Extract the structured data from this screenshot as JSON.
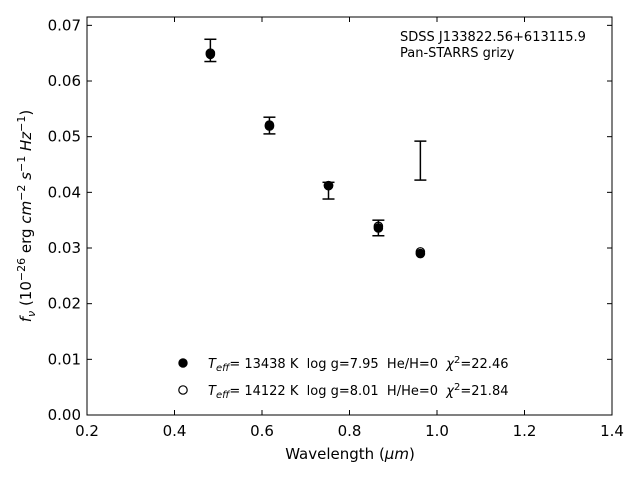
{
  "chart_data": {
    "type": "scatter",
    "xlabel_main": "Wavelength (",
    "xlabel_unit": "μm",
    "xlabel_close": ")",
    "ylabel": "f_ν (10^-26 erg cm^-2 s^-1 Hz^-1)",
    "xlim": [
      0.2,
      1.4
    ],
    "ylim": [
      0.0,
      0.0715
    ],
    "xticks": [
      "0.2",
      "0.4",
      "0.6",
      "0.8",
      "1.0",
      "1.2",
      "1.4"
    ],
    "yticks": [
      "0.00",
      "0.01",
      "0.02",
      "0.03",
      "0.04",
      "0.05",
      "0.06",
      "0.07"
    ],
    "annotation_lines": [
      "SDSS J133822.56+613115.9",
      "Pan-STARRS grizy"
    ],
    "observed": [
      {
        "x": 0.482,
        "y": 0.0655,
        "err": 0.002
      },
      {
        "x": 0.617,
        "y": 0.052,
        "err": 0.0015
      },
      {
        "x": 0.752,
        "y": 0.0403,
        "err": 0.0015
      },
      {
        "x": 0.866,
        "y": 0.0336,
        "err": 0.0014
      }
    ],
    "typical_error": {
      "x": 0.962,
      "y": 0.0457,
      "err": 0.0035
    },
    "series": [
      {
        "marker": "filled",
        "name_parts": [
          "T",
          "eff",
          "= 13438 K  log g=7.95  He/H=0  ",
          "χ",
          "2",
          "=22.46"
        ],
        "x": [
          0.482,
          0.617,
          0.752,
          0.866,
          0.962
        ],
        "y": [
          0.0648,
          0.0521,
          0.0412,
          0.0336,
          0.029
        ]
      },
      {
        "marker": "open",
        "name_parts": [
          "T",
          "eff",
          "= 14122 K  log g=8.01  H/He=0  ",
          "χ",
          "2",
          "=21.84"
        ],
        "x": [
          0.482,
          0.617,
          0.752,
          0.866,
          0.962
        ],
        "y": [
          0.065,
          0.0519,
          0.0412,
          0.0339,
          0.0293
        ]
      }
    ],
    "legend_placement": "bottom-center",
    "grid": false
  }
}
